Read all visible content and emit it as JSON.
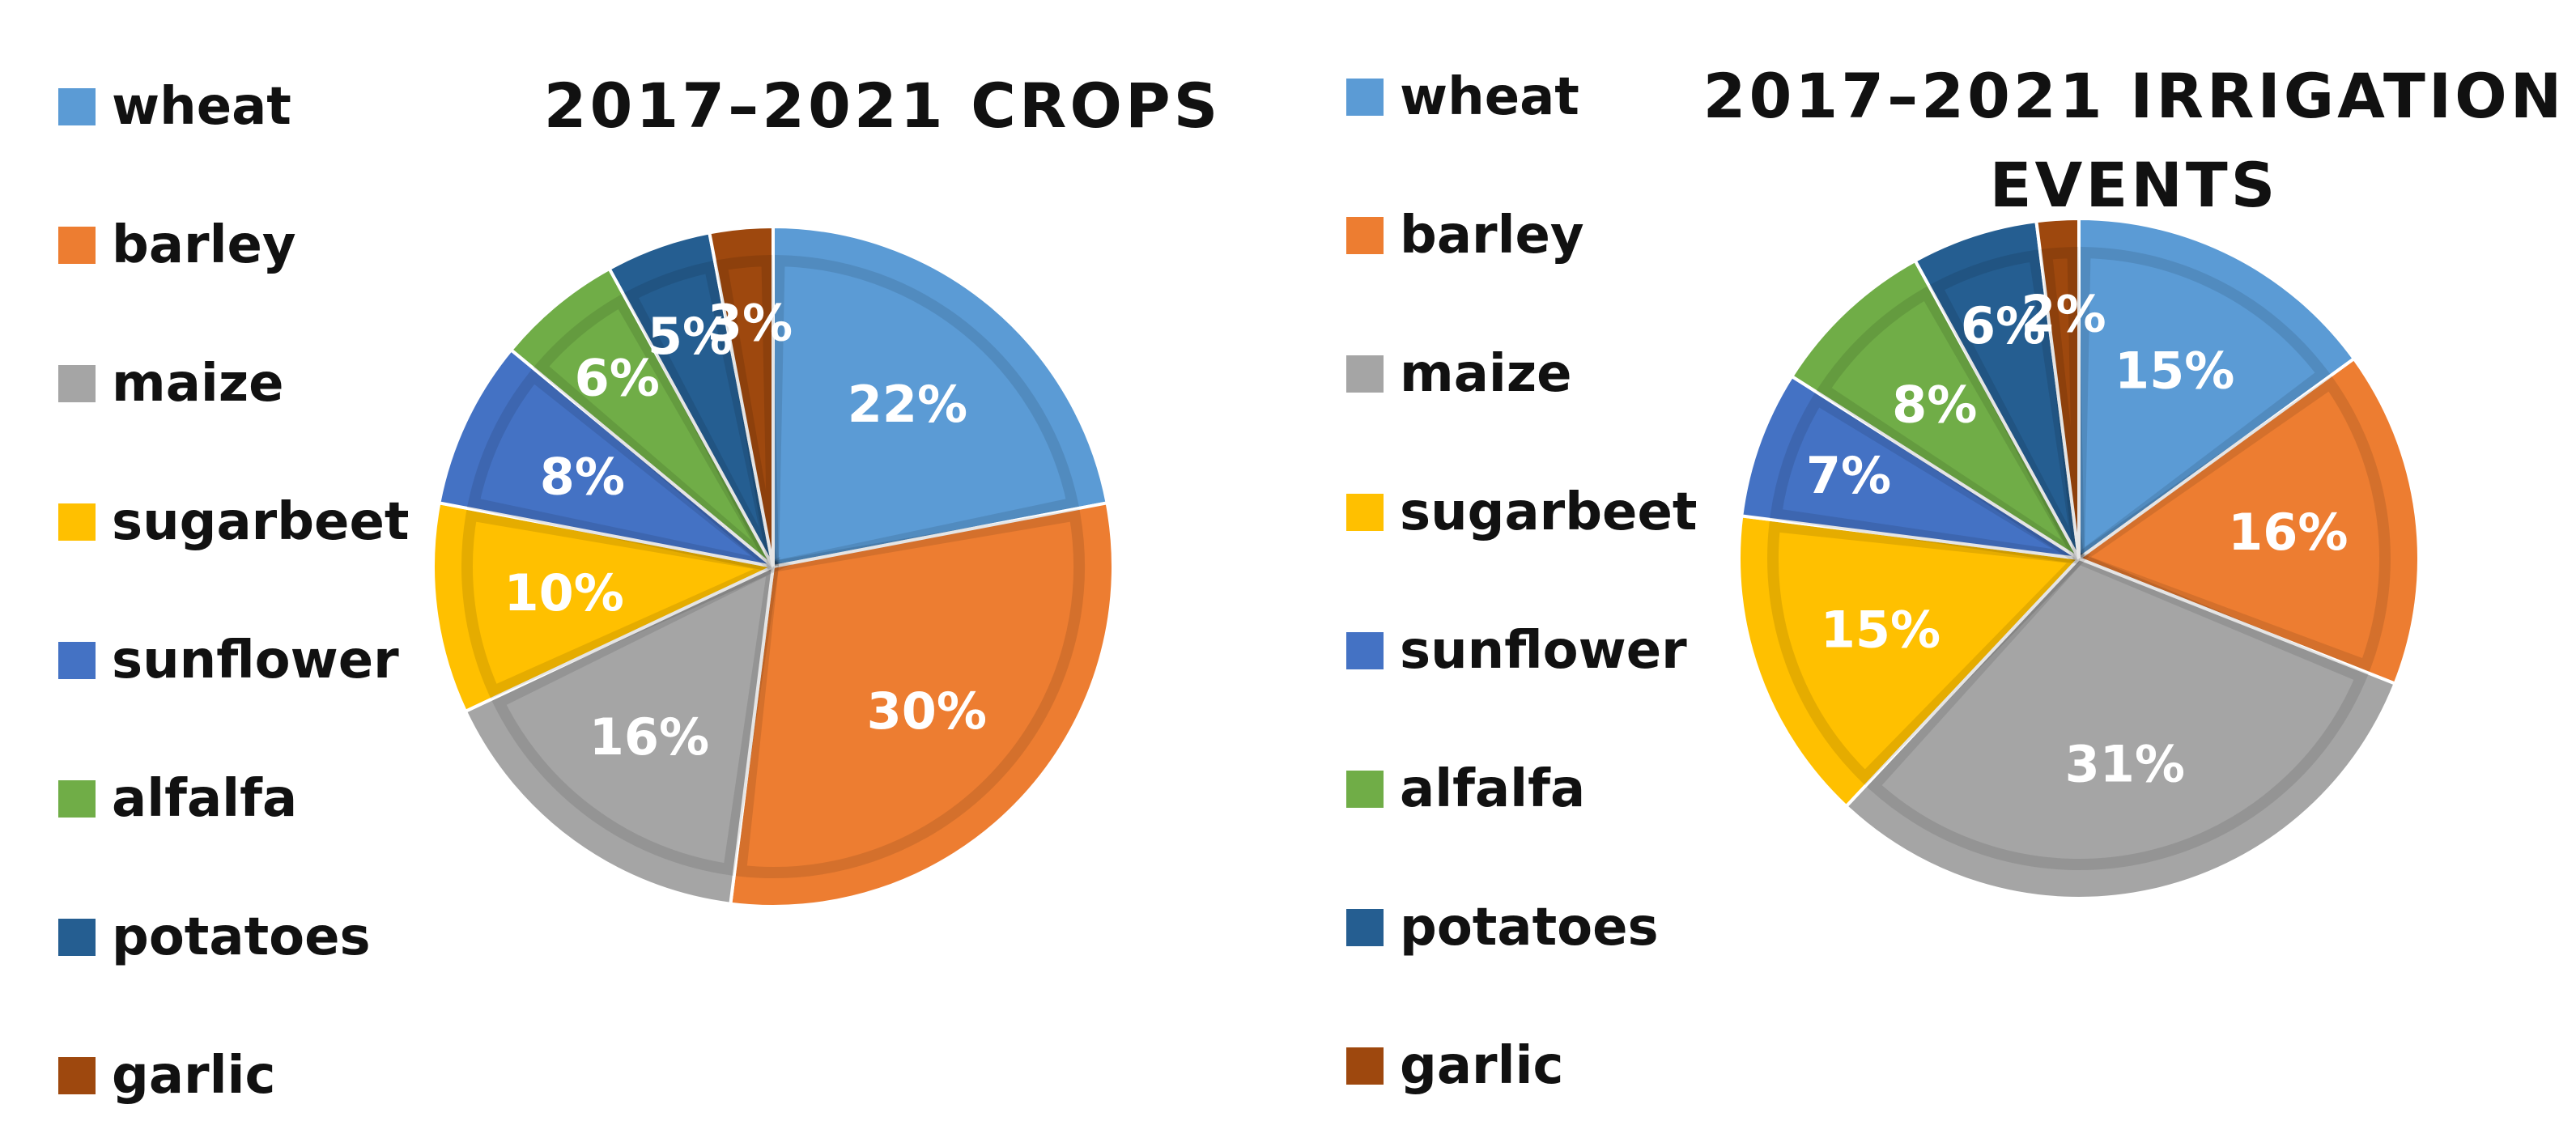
{
  "chart_data": [
    {
      "type": "pie",
      "title": "2017–2021 CROPS",
      "categories": [
        "wheat",
        "barley",
        "maize",
        "sugarbeet",
        "sunflower",
        "alfalfa",
        "potatoes",
        "garlic"
      ],
      "values": [
        22,
        30,
        16,
        10,
        8,
        6,
        5,
        3
      ],
      "labels": [
        "22%",
        "30%",
        "16%",
        "10%",
        "8%",
        "6%",
        "5%",
        "3%"
      ],
      "colors": [
        "#5b9bd5",
        "#ed7d31",
        "#a5a5a5",
        "#ffc000",
        "#4472c4",
        "#70ad47",
        "#255e91",
        "#9e480e"
      ],
      "legend_position": "left"
    },
    {
      "type": "pie",
      "title": "2017–2021 IRRIGATION EVENTS",
      "categories": [
        "wheat",
        "barley",
        "maize",
        "sugarbeet",
        "sunflower",
        "alfalfa",
        "potatoes",
        "garlic"
      ],
      "values": [
        15,
        16,
        31,
        15,
        7,
        8,
        6,
        2
      ],
      "labels": [
        "15%",
        "16%",
        "31%",
        "15%",
        "7%",
        "8%",
        "6%",
        "2%"
      ],
      "colors": [
        "#5b9bd5",
        "#ed7d31",
        "#a5a5a5",
        "#ffc000",
        "#4472c4",
        "#70ad47",
        "#255e91",
        "#9e480e"
      ],
      "legend_position": "left"
    }
  ]
}
